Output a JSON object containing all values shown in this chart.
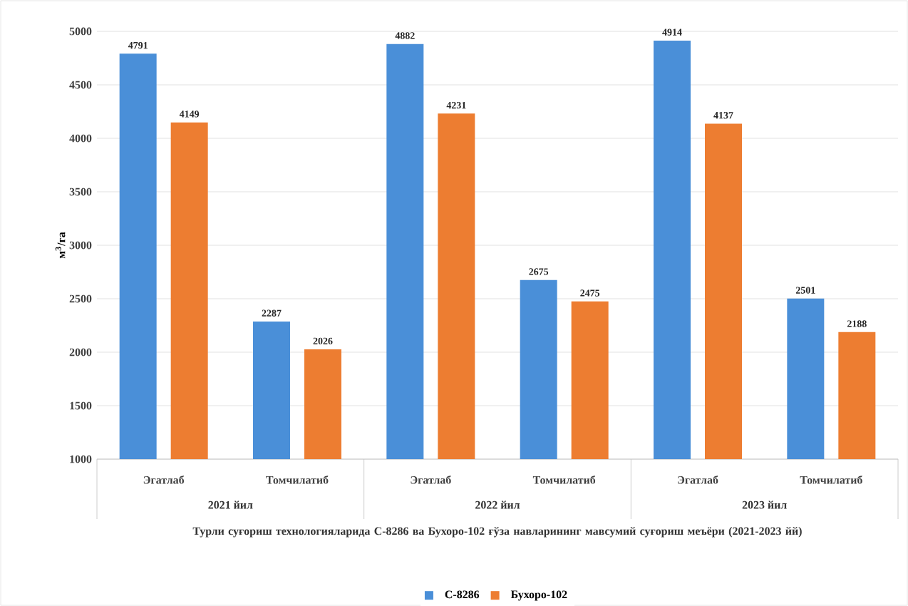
{
  "chart_data": {
    "type": "bar",
    "categories": [
      "Эгатлаб",
      "Томчилатиб",
      "Эгатлаб",
      "Томчилатиб",
      "Эгатлаб",
      "Томчилатиб"
    ],
    "annotations": [
      "2021 йил",
      "2022 йил",
      "2023 йил"
    ],
    "xlabel": "Турли суғориш технологияларида С-8286 ва Бухоро-102 ғўза навларининг мавсумий суғориш меъёри (2021-2023 йй)",
    "ylabel": "м$^{3}$/га",
    "series": [
      {
        "name": "С-8286",
        "color": "#4a8fd8",
        "values": [
          4791,
          2287,
          4882,
          2675,
          4914,
          2501
        ]
      },
      {
        "name": "Бухоро-102",
        "color": "#ed7d31",
        "values": [
          4149,
          2026,
          4231,
          2475,
          4137,
          2188
        ]
      }
    ],
    "ylim": [
      1000,
      5000
    ],
    "yticks": [
      1000,
      1500,
      2000,
      2500,
      3000,
      3500,
      4000,
      4500,
      5000
    ],
    "grid": "y",
    "legend": "bottom",
    "data_labels": true
  }
}
